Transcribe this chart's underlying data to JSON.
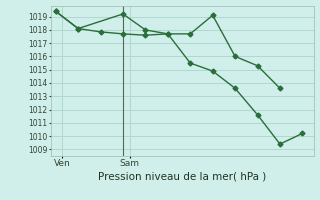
{
  "xlabel": "Pression niveau de la mer( hPa )",
  "ylim": [
    1008.5,
    1019.8
  ],
  "yticks": [
    1009,
    1010,
    1011,
    1012,
    1013,
    1014,
    1015,
    1016,
    1017,
    1018,
    1019
  ],
  "bg_color": "#d0eeea",
  "grid_color": "#b0d8d0",
  "line_color": "#2a6e3a",
  "line1_x": [
    0,
    1,
    3,
    4,
    5,
    6,
    7,
    8,
    9,
    10
  ],
  "line1_y": [
    1019.4,
    1018.1,
    1019.2,
    1018.0,
    1017.7,
    1017.7,
    1019.1,
    1016.0,
    1015.3,
    1013.6
  ],
  "line2_x": [
    0,
    1,
    2,
    3,
    4,
    5,
    6,
    7,
    8,
    9,
    10,
    11
  ],
  "line2_y": [
    1019.4,
    1018.1,
    1017.85,
    1017.7,
    1017.6,
    1017.7,
    1015.5,
    1014.9,
    1013.6,
    1011.6,
    1009.4,
    1010.2
  ],
  "ven_x": 0.3,
  "sam_x": 3.3,
  "vline_x": 3.0,
  "xlim": [
    -0.2,
    11.5
  ],
  "xlabel_fontsize": 7.5,
  "ytick_fontsize": 5.5,
  "xtick_fontsize": 6.5
}
